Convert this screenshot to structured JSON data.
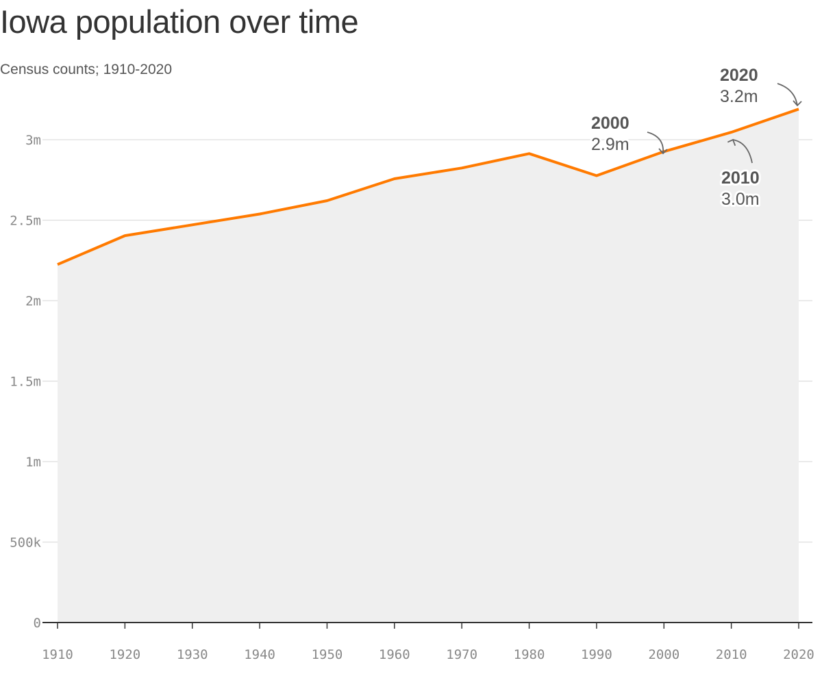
{
  "chart_data": {
    "type": "area",
    "title": "Iowa population over time",
    "subtitle": "Census counts; 1910-2020",
    "x": [
      1910,
      1920,
      1930,
      1940,
      1950,
      1960,
      1970,
      1980,
      1990,
      2000,
      2010,
      2020
    ],
    "values": [
      2224771,
      2404021,
      2470939,
      2538268,
      2621073,
      2757537,
      2824376,
      2913808,
      2776755,
      2926324,
      3046355,
      3190369
    ],
    "xlim": [
      1910,
      2020
    ],
    "ylim": [
      0,
      3200000
    ],
    "x_ticks": [
      "1910",
      "1920",
      "1930",
      "1940",
      "1950",
      "1960",
      "1970",
      "1980",
      "1990",
      "2000",
      "2010",
      "2020"
    ],
    "y_ticks": [
      {
        "value": 0,
        "label": "0"
      },
      {
        "value": 500000,
        "label": "500k"
      },
      {
        "value": 1000000,
        "label": "1m"
      },
      {
        "value": 1500000,
        "label": "1.5m"
      },
      {
        "value": 2000000,
        "label": "2m"
      },
      {
        "value": 2500000,
        "label": "2.5m"
      },
      {
        "value": 3000000,
        "label": "3m"
      }
    ],
    "grid": true,
    "annotations": [
      {
        "year": "2000",
        "value": "2.9m"
      },
      {
        "year": "2010",
        "value": "3.0m"
      },
      {
        "year": "2020",
        "value": "3.2m"
      }
    ],
    "colors": {
      "line": "#ff7a00",
      "area": "#efefef",
      "grid": "#dddddd",
      "axis": "#333333",
      "text": "#555555",
      "tick": "#888888"
    }
  }
}
